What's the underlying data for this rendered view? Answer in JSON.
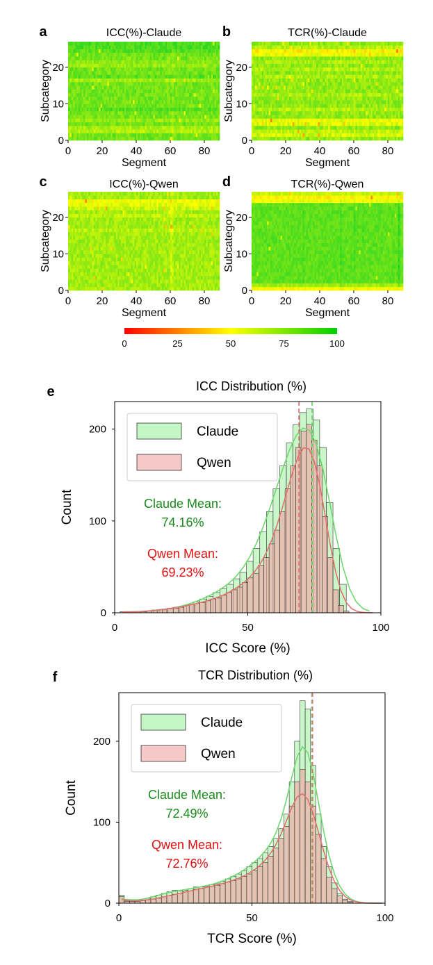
{
  "heatmaps": [
    {
      "letter": "a",
      "title": "ICC(%)-Claude",
      "xlabel": "Segment",
      "ylabel": "Subcategory",
      "xticks": [
        "0",
        "20",
        "40",
        "60",
        "80"
      ],
      "yticks": [
        "0",
        "10",
        "20"
      ],
      "rows": 27,
      "cols": 89,
      "base": 80,
      "spread": 8,
      "seed": 11,
      "row_effects": {
        "2": -14,
        "3": -12,
        "5": -8,
        "8": 6,
        "16": -10,
        "17": 6,
        "20": -8,
        "21": -6,
        "24": 6,
        "25": 8,
        "26": 8
      },
      "col_effects": {
        "61": -6,
        "59": -3,
        "36": -3
      }
    },
    {
      "letter": "b",
      "title": "TCR(%)-Claude",
      "xlabel": "Segment",
      "ylabel": "Subcategory",
      "xticks": [
        "0",
        "20",
        "40",
        "60",
        "80"
      ],
      "yticks": [
        "0",
        "10",
        "20"
      ],
      "rows": 27,
      "cols": 89,
      "base": 74,
      "spread": 9,
      "seed": 23,
      "row_effects": {
        "1": -14,
        "2": -10,
        "4": -18,
        "5": -20,
        "8": -8,
        "12": -6,
        "17": -6,
        "19": -8,
        "21": -6,
        "23": -20,
        "24": -26,
        "25": -8
      },
      "col_effects": {
        "60": -5
      }
    },
    {
      "letter": "c",
      "title": "ICC(%)-Qwen",
      "xlabel": "Segment",
      "ylabel": "Subcategory",
      "xticks": [
        "0",
        "20",
        "40",
        "60",
        "80"
      ],
      "yticks": [
        "0",
        "10",
        "20"
      ],
      "rows": 27,
      "cols": 89,
      "base": 70,
      "spread": 8,
      "seed": 37,
      "row_effects": {
        "23": -14,
        "24": -18,
        "22": -8,
        "20": -6,
        "16": -4
      },
      "col_effects": {
        "60": -10,
        "61": -6,
        "14": -3
      }
    },
    {
      "letter": "d",
      "title": "TCR(%)-Qwen",
      "xlabel": "Segment",
      "ylabel": "Subcategory",
      "xticks": [
        "0",
        "20",
        "40",
        "60",
        "80"
      ],
      "yticks": [
        "0",
        "10",
        "20"
      ],
      "rows": 27,
      "cols": 89,
      "base": 84,
      "spread": 6,
      "seed": 53,
      "row_effects": {
        "0": -34,
        "1": -14,
        "24": -30,
        "25": -36,
        "26": -22
      },
      "col_effects": {
        "86": 10,
        "52": 6,
        "60": 5,
        "65": 4,
        "30": 4
      }
    }
  ],
  "colorbar": {
    "ticks": [
      "0",
      "25",
      "50",
      "75",
      "100"
    ],
    "stops": [
      "#ff0000",
      "#ffff00",
      "#00d000"
    ]
  },
  "chart_data": [
    {
      "letter": "e",
      "type": "histogram",
      "title": "ICC Distribution (%)",
      "xlabel": "ICC Score (%)",
      "ylabel": "Count",
      "xlim": [
        0,
        100
      ],
      "ylim": [
        0,
        230
      ],
      "xticks": [
        "0",
        "50",
        "100"
      ],
      "yticks": [
        "0",
        "100",
        "200"
      ],
      "legend": "top-left",
      "series": [
        {
          "name": "Claude",
          "fill": "#9ef09e",
          "kde": "#6fd86f",
          "mean_color": "#1a8a1a",
          "mean_label": "Claude Mean:",
          "mean_value": "74.16%",
          "mean": 74.16,
          "bins_start": 2,
          "bin_width": 2.5,
          "counts": [
            1,
            1,
            1,
            1,
            2,
            2,
            3,
            4,
            6,
            7,
            9,
            12,
            15,
            18,
            22,
            26,
            31,
            37,
            44,
            56,
            70,
            88,
            110,
            135,
            160,
            185,
            205,
            218,
            222,
            210,
            180,
            120,
            70,
            31,
            0,
            0,
            0,
            0
          ]
        },
        {
          "name": "Qwen",
          "fill": "#f2a3a3",
          "kde": "#e37070",
          "mean_color": "#e01010",
          "mean_label": "Qwen Mean:",
          "mean_value": "69.23%",
          "mean": 69.23,
          "bins_start": 2,
          "bin_width": 2,
          "counts": [
            1,
            1,
            1,
            1,
            1,
            2,
            3,
            3,
            4,
            5,
            5,
            6,
            8,
            9,
            10,
            11,
            13,
            15,
            16,
            19,
            22,
            25,
            28,
            33,
            38,
            43,
            52,
            60,
            75,
            90,
            110,
            135,
            160,
            180,
            198,
            205,
            188,
            160,
            105,
            60,
            25,
            8,
            2,
            0,
            0,
            0,
            0,
            0
          ]
        }
      ]
    },
    {
      "letter": "f",
      "type": "histogram",
      "title": "TCR Distribution (%)",
      "xlabel": "TCR Score (%)",
      "ylabel": "Count",
      "xlim": [
        0,
        100
      ],
      "ylim": [
        0,
        260
      ],
      "xticks": [
        "0",
        "50",
        "100"
      ],
      "yticks": [
        "0",
        "100",
        "200"
      ],
      "legend": "top-left",
      "series": [
        {
          "name": "Claude",
          "fill": "#9ef09e",
          "kde": "#6fd86f",
          "mean_color": "#1a8a1a",
          "mean_label": "Claude Mean:",
          "mean_value": "72.49%",
          "mean": 72.49,
          "bins_start": 0,
          "bin_width": 2,
          "counts": [
            10,
            3,
            2,
            3,
            4,
            6,
            8,
            10,
            12,
            14,
            16,
            15,
            16,
            18,
            20,
            20,
            21,
            23,
            24,
            27,
            30,
            33,
            36,
            40,
            45,
            50,
            55,
            62,
            70,
            80,
            92,
            110,
            150,
            200,
            250,
            240,
            170,
            110,
            70,
            45,
            25,
            12,
            5,
            2,
            0,
            0,
            0,
            0,
            0,
            0
          ]
        },
        {
          "name": "Qwen",
          "fill": "#f2a3a3",
          "kde": "#e37070",
          "mean_color": "#e01010",
          "mean_label": "Qwen Mean:",
          "mean_value": "72.76%",
          "mean": 72.76,
          "bins_start": 0,
          "bin_width": 2,
          "counts": [
            8,
            2,
            2,
            2,
            3,
            4,
            5,
            6,
            8,
            9,
            11,
            12,
            14,
            15,
            17,
            18,
            20,
            21,
            22,
            24,
            26,
            28,
            30,
            33,
            36,
            40,
            45,
            50,
            58,
            68,
            80,
            95,
            120,
            150,
            165,
            150,
            120,
            85,
            55,
            32,
            18,
            9,
            4,
            1,
            0,
            0,
            0,
            0,
            0,
            0
          ]
        }
      ]
    }
  ]
}
